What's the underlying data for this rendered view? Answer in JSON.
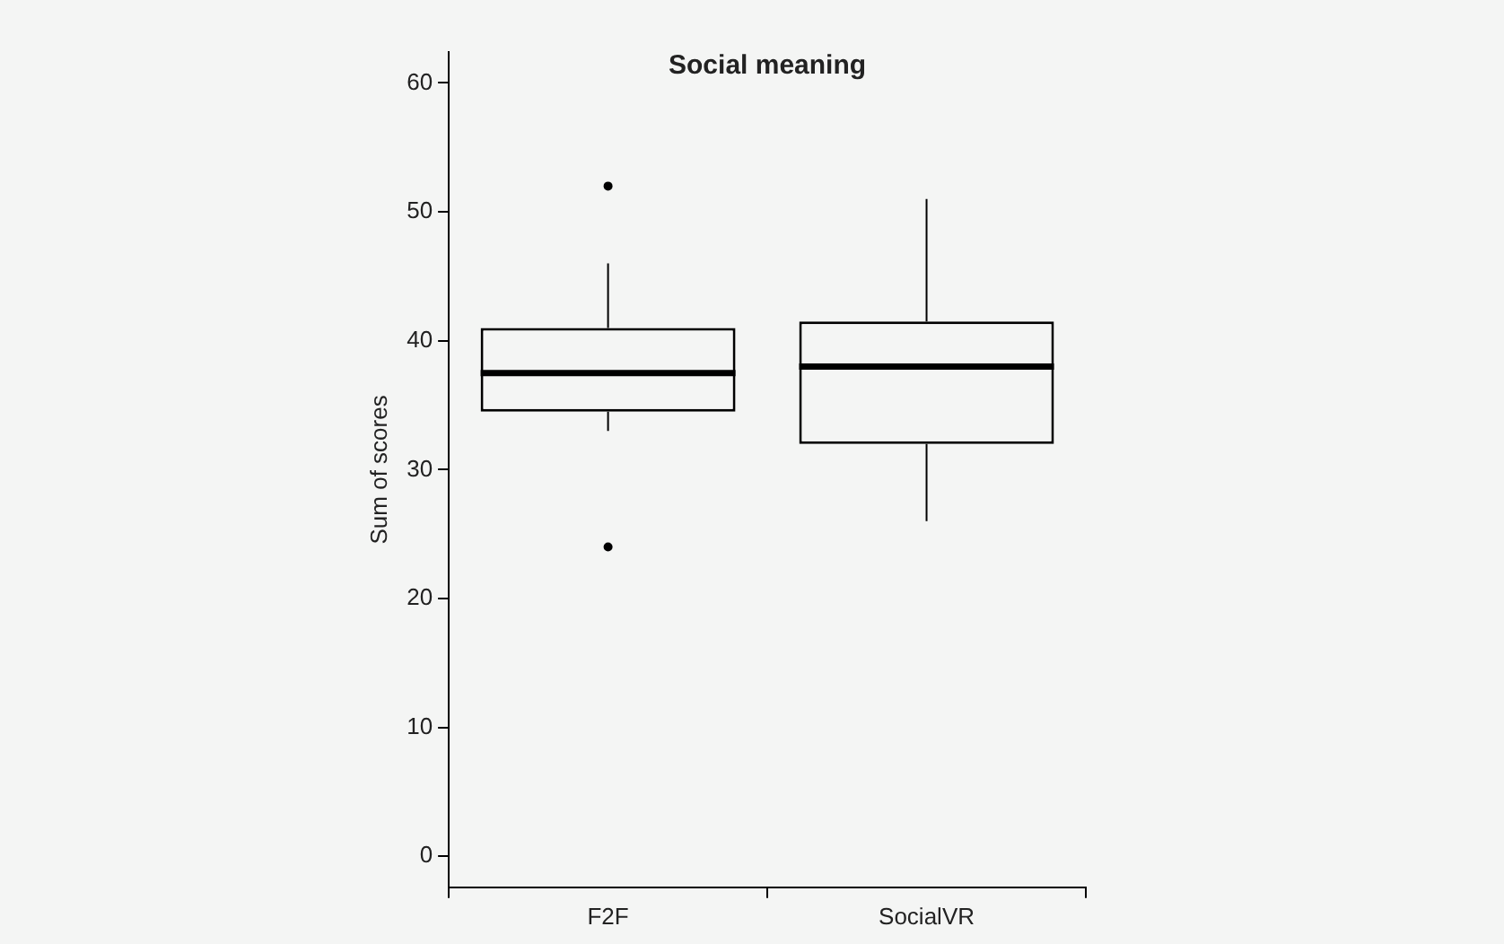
{
  "chart_data": {
    "type": "box",
    "title": "Social meaning",
    "ylabel": "Sum of scores",
    "categories": [
      "F2F",
      "SocialVR"
    ],
    "boxes": [
      {
        "low": 33,
        "q1": 34.5,
        "median": 37.5,
        "q3": 41,
        "high": 46,
        "outliers": [
          24,
          52
        ]
      },
      {
        "low": 26,
        "q1": 32,
        "median": 38,
        "q3": 41.5,
        "high": 51
      }
    ],
    "ylim": [
      -2.4,
      62.4
    ],
    "yticks": [
      0,
      10,
      20,
      30,
      40,
      50,
      60
    ]
  }
}
